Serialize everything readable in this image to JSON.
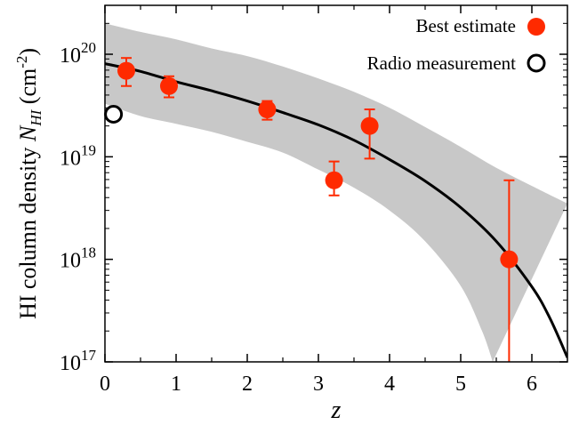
{
  "chart_data": {
    "type": "scatter",
    "xlabel": "z",
    "ylabel": {
      "prefix": "HI column density ",
      "symbol": "N",
      "subscript": "HI",
      "unit_open": " (cm",
      "unit_exp": "-2",
      "unit_close": ")"
    },
    "xlim": [
      0,
      6.5
    ],
    "ylim": [
      1e+17,
      3e+20
    ],
    "yscale": "log",
    "x_ticks": [
      {
        "value": 0,
        "label": "0"
      },
      {
        "value": 1,
        "label": "1"
      },
      {
        "value": 2,
        "label": "2"
      },
      {
        "value": 3,
        "label": "3"
      },
      {
        "value": 4,
        "label": "4"
      },
      {
        "value": 5,
        "label": "5"
      },
      {
        "value": 6,
        "label": "6"
      }
    ],
    "y_ticks": [
      {
        "value": 1e+17,
        "base": "10",
        "exp": "17"
      },
      {
        "value": 1e+18,
        "base": "10",
        "exp": "18"
      },
      {
        "value": 1e+19,
        "base": "10",
        "exp": "19"
      },
      {
        "value": 1e+20,
        "base": "10",
        "exp": "20"
      }
    ],
    "legend": {
      "placement": "top-right",
      "entries": [
        {
          "label": "Best estimate",
          "marker": "filled-circle"
        },
        {
          "label": "Radio measurement",
          "marker": "open-circle"
        }
      ]
    },
    "series": [
      {
        "name": "Best estimate",
        "color": "#ff2a00",
        "points": [
          {
            "x": 0.3,
            "y": 6.9e+19,
            "ylow": 4.9e+19,
            "yhigh": 9.2e+19
          },
          {
            "x": 0.9,
            "y": 4.9e+19,
            "ylow": 3.8e+19,
            "yhigh": 6.1e+19
          },
          {
            "x": 2.28,
            "y": 2.9e+19,
            "ylow": 2.3e+19,
            "yhigh": 3.5e+19
          },
          {
            "x": 3.22,
            "y": 5.9e+18,
            "ylow": 4.2e+18,
            "yhigh": 9e+18
          },
          {
            "x": 3.72,
            "y": 2e+19,
            "ylow": 9.6e+18,
            "yhigh": 2.9e+19
          },
          {
            "x": 5.68,
            "y": 1e+18,
            "ylow": 1e+17,
            "yhigh": 5.9e+18
          }
        ]
      },
      {
        "name": "Radio measurement",
        "color": "#000000",
        "points": [
          {
            "x": 0.12,
            "y": 2.6e+19
          }
        ]
      }
    ],
    "fit_curve": {
      "color": "#000000",
      "points": [
        {
          "x": 0,
          "y": 8.1e+19
        },
        {
          "x": 0.5,
          "y": 6.8e+19
        },
        {
          "x": 1,
          "y": 5.4e+19
        },
        {
          "x": 1.5,
          "y": 4.4e+19
        },
        {
          "x": 2,
          "y": 3.5e+19
        },
        {
          "x": 2.5,
          "y": 2.7e+19
        },
        {
          "x": 3,
          "y": 2.05e+19
        },
        {
          "x": 3.5,
          "y": 1.45e+19
        },
        {
          "x": 4,
          "y": 9.4e+18
        },
        {
          "x": 4.5,
          "y": 5.8e+18
        },
        {
          "x": 5,
          "y": 3.2e+18
        },
        {
          "x": 5.5,
          "y": 1.5e+18
        },
        {
          "x": 6,
          "y": 5.4e+17
        },
        {
          "x": 6.25,
          "y": 2.7e+17
        },
        {
          "x": 6.5,
          "y": 1.1e+17
        }
      ]
    },
    "confidence_band": {
      "color": "#c8c8c8",
      "upper": [
        {
          "x": 0,
          "y": 2e+20
        },
        {
          "x": 0.5,
          "y": 1.65e+20
        },
        {
          "x": 1,
          "y": 1.4e+20
        },
        {
          "x": 1.5,
          "y": 1.14e+20
        },
        {
          "x": 2,
          "y": 9.6e+19
        },
        {
          "x": 2.5,
          "y": 7.6e+19
        },
        {
          "x": 3,
          "y": 5.8e+19
        },
        {
          "x": 3.5,
          "y": 4.3e+19
        },
        {
          "x": 4,
          "y": 3e+19
        },
        {
          "x": 4.5,
          "y": 1.95e+19
        },
        {
          "x": 5,
          "y": 1.25e+19
        },
        {
          "x": 5.5,
          "y": 7.8e+18
        },
        {
          "x": 6,
          "y": 5.2e+18
        },
        {
          "x": 6.5,
          "y": 3.5e+18
        }
      ],
      "lower": [
        {
          "x": 0,
          "y": 3.3e+19
        },
        {
          "x": 0.5,
          "y": 2.5e+19
        },
        {
          "x": 1,
          "y": 2.1e+19
        },
        {
          "x": 1.5,
          "y": 1.75e+19
        },
        {
          "x": 2,
          "y": 1.4e+19
        },
        {
          "x": 2.5,
          "y": 1.1e+19
        },
        {
          "x": 3,
          "y": 7.5e+18
        },
        {
          "x": 3.5,
          "y": 5e+18
        },
        {
          "x": 4,
          "y": 3e+18
        },
        {
          "x": 4.5,
          "y": 1.5e+18
        },
        {
          "x": 5,
          "y": 5.5e+17
        },
        {
          "x": 5.3,
          "y": 2e+17
        },
        {
          "x": 5.45,
          "y": 1e+17
        }
      ]
    }
  }
}
